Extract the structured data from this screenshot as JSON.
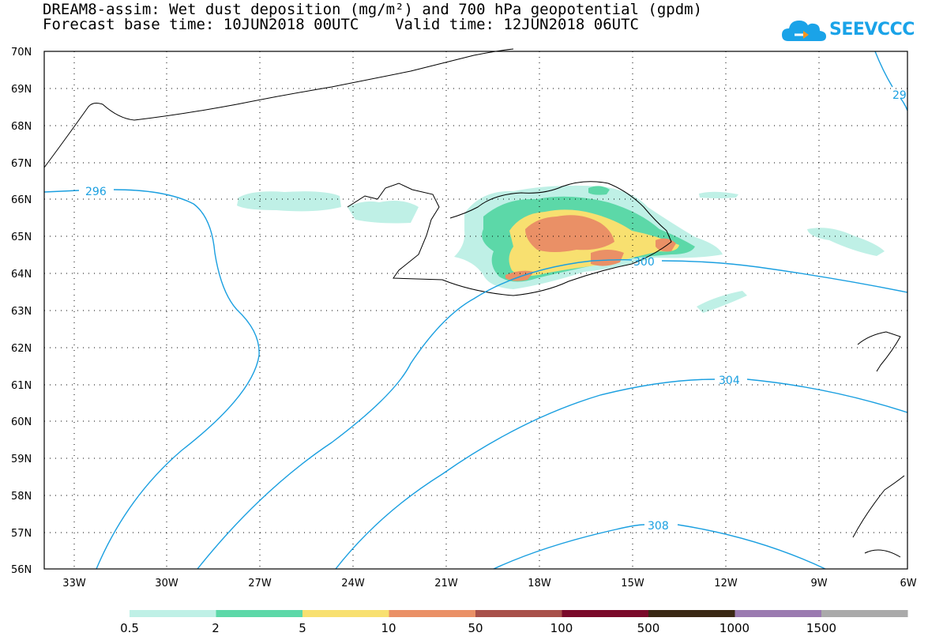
{
  "header": {
    "title_line1": "DREAM8-assim: Wet dust deposition (mg/m²) and 700 hPa geopotential (gpdm)",
    "title_line2": "Forecast base time: 10JUN2018 00UTC    Valid time: 12JUN2018 06UTC"
  },
  "logo": {
    "text": "SEEVCCC",
    "icon": "cloud-icon",
    "colors": [
      "#1aa3e8",
      "#f7941d"
    ]
  },
  "map": {
    "lat_labels": [
      "70N",
      "69N",
      "68N",
      "67N",
      "66N",
      "65N",
      "64N",
      "63N",
      "62N",
      "61N",
      "60N",
      "59N",
      "58N",
      "57N",
      "56N"
    ],
    "lon_labels": [
      "33W",
      "30W",
      "27W",
      "24W",
      "21W",
      "18W",
      "15W",
      "12W",
      "9W",
      "6W"
    ],
    "contour_labels": [
      "296",
      "300",
      "304",
      "308",
      "29"
    ],
    "contour_color": "#1a9fe0",
    "coastline_color": "#000000"
  },
  "colorbar": {
    "labels": [
      "0.5",
      "2",
      "5",
      "10",
      "50",
      "100",
      "500",
      "1000",
      "1500"
    ],
    "colors": [
      "#bff0e6",
      "#5cd8a8",
      "#f8e070",
      "#ea9066",
      "#a8504a",
      "#7a0a2a",
      "#3a2814",
      "#9a7ab0",
      "#aaaaaa"
    ]
  }
}
